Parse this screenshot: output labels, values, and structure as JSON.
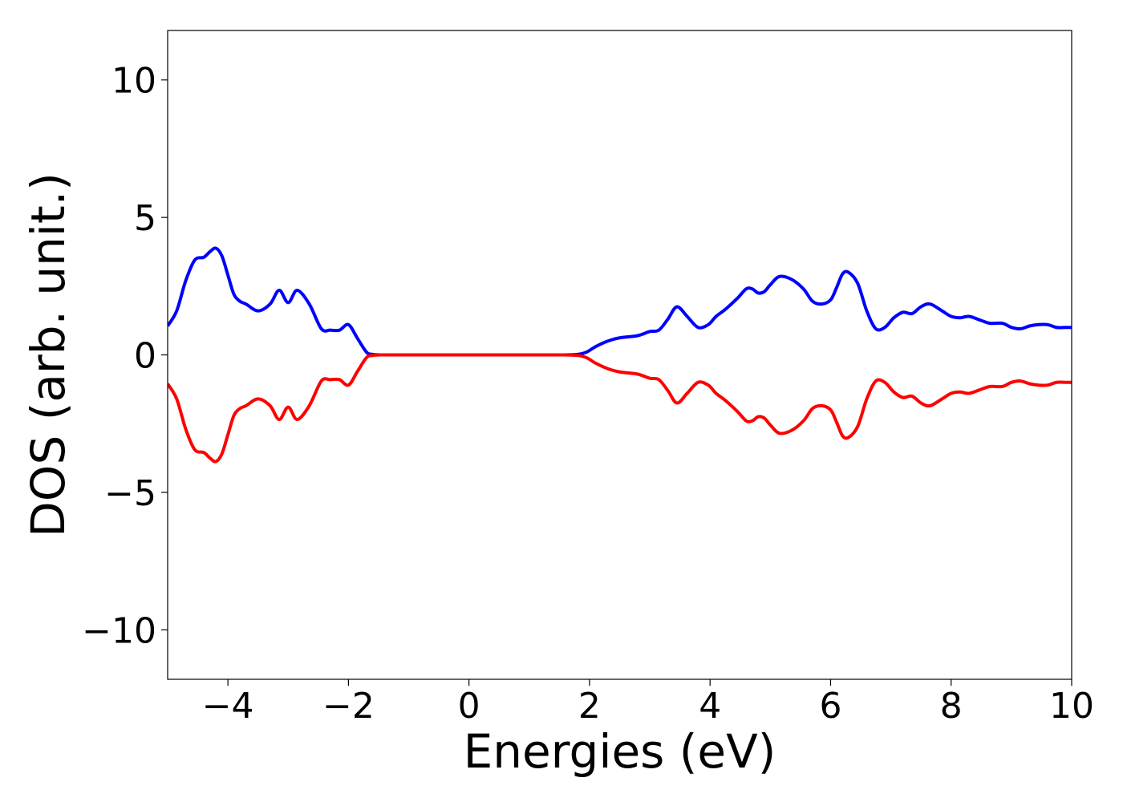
{
  "chart_data": {
    "type": "line",
    "xlabel": "Energies (eV)",
    "ylabel": "DOS (arb. unit.)",
    "xlim": [
      -5,
      10
    ],
    "ylim": [
      -11.8,
      11.8
    ],
    "xticks": [
      -4,
      -2,
      0,
      2,
      4,
      6,
      8,
      10
    ],
    "xtick_labels": [
      "−4",
      "−2",
      "0",
      "2",
      "4",
      "6",
      "8",
      "10"
    ],
    "yticks": [
      10,
      5,
      0,
      -5,
      -10
    ],
    "ytick_labels": [
      "10",
      "5",
      "0",
      "−5",
      "−10"
    ],
    "grid": false,
    "series": [
      {
        "color": "#0000ff",
        "x": [
          -5.0,
          -4.85,
          -4.7,
          -4.55,
          -4.4,
          -4.3,
          -4.2,
          -4.1,
          -4.0,
          -3.9,
          -3.8,
          -3.7,
          -3.5,
          -3.3,
          -3.15,
          -3.0,
          -2.85,
          -2.65,
          -2.45,
          -2.3,
          -2.15,
          -2.0,
          -1.85,
          -1.7,
          -1.6,
          -1.45,
          -1.3,
          -1.2,
          -1.1,
          -1.0,
          -0.9,
          -0.8,
          -0.7,
          -0.6,
          -0.5,
          -0.3,
          0.0,
          0.5,
          1.0,
          1.5,
          1.8,
          1.95,
          2.1,
          2.3,
          2.5,
          2.8,
          3.0,
          3.15,
          3.3,
          3.45,
          3.62,
          3.8,
          3.97,
          4.1,
          4.25,
          4.45,
          4.6,
          4.7,
          4.8,
          4.9,
          5.0,
          5.15,
          5.35,
          5.55,
          5.7,
          5.85,
          6.0,
          6.1,
          6.2,
          6.3,
          6.45,
          6.6,
          6.75,
          6.9,
          7.05,
          7.2,
          7.35,
          7.5,
          7.65,
          7.85,
          8.0,
          8.15,
          8.3,
          8.5,
          8.65,
          8.85,
          9.0,
          9.15,
          9.3,
          9.45,
          9.6,
          9.75,
          9.9,
          10.0
        ],
        "y": [
          1.05,
          1.6,
          2.7,
          3.45,
          3.55,
          3.75,
          3.88,
          3.6,
          2.9,
          2.2,
          1.95,
          1.85,
          1.6,
          1.85,
          2.35,
          1.9,
          2.35,
          1.85,
          0.95,
          0.9,
          0.9,
          1.1,
          0.6,
          0.1,
          0.02,
          0.0,
          0.0,
          0.0,
          0.0,
          0.0,
          0.0,
          0.0,
          0.0,
          0.0,
          0.0,
          0.0,
          0.0,
          0.0,
          0.0,
          0.0,
          0.02,
          0.1,
          0.3,
          0.5,
          0.62,
          0.7,
          0.85,
          0.9,
          1.3,
          1.75,
          1.4,
          1.0,
          1.1,
          1.4,
          1.65,
          2.05,
          2.4,
          2.4,
          2.25,
          2.3,
          2.55,
          2.85,
          2.75,
          2.4,
          1.95,
          1.85,
          2.0,
          2.45,
          2.95,
          3.0,
          2.6,
          1.6,
          0.95,
          1.0,
          1.35,
          1.55,
          1.5,
          1.75,
          1.85,
          1.6,
          1.4,
          1.35,
          1.4,
          1.25,
          1.15,
          1.15,
          1.0,
          0.95,
          1.05,
          1.1,
          1.1,
          1.0,
          1.0,
          1.0
        ]
      },
      {
        "color": "#ff0000",
        "x": [
          -5.0,
          -4.85,
          -4.7,
          -4.55,
          -4.4,
          -4.3,
          -4.2,
          -4.1,
          -4.0,
          -3.9,
          -3.8,
          -3.7,
          -3.5,
          -3.3,
          -3.15,
          -3.0,
          -2.85,
          -2.65,
          -2.45,
          -2.3,
          -2.15,
          -2.0,
          -1.85,
          -1.7,
          -1.6,
          -1.45,
          -1.3,
          -1.2,
          -1.1,
          -1.0,
          -0.9,
          -0.8,
          -0.7,
          -0.6,
          -0.5,
          -0.3,
          0.0,
          0.5,
          1.0,
          1.5,
          1.8,
          1.95,
          2.1,
          2.3,
          2.5,
          2.8,
          3.0,
          3.15,
          3.3,
          3.45,
          3.62,
          3.8,
          3.97,
          4.1,
          4.25,
          4.45,
          4.6,
          4.7,
          4.8,
          4.9,
          5.0,
          5.15,
          5.35,
          5.55,
          5.7,
          5.85,
          6.0,
          6.1,
          6.2,
          6.3,
          6.45,
          6.6,
          6.75,
          6.9,
          7.05,
          7.2,
          7.35,
          7.5,
          7.65,
          7.85,
          8.0,
          8.15,
          8.3,
          8.5,
          8.65,
          8.85,
          9.0,
          9.15,
          9.3,
          9.45,
          9.6,
          9.75,
          9.9,
          10.0
        ],
        "y": [
          -1.05,
          -1.6,
          -2.7,
          -3.45,
          -3.55,
          -3.75,
          -3.88,
          -3.6,
          -2.9,
          -2.2,
          -1.95,
          -1.85,
          -1.6,
          -1.85,
          -2.35,
          -1.9,
          -2.35,
          -1.85,
          -0.95,
          -0.9,
          -0.9,
          -1.1,
          -0.6,
          -0.1,
          -0.02,
          0.0,
          0.0,
          0.0,
          0.0,
          0.0,
          0.0,
          0.0,
          0.0,
          0.0,
          0.0,
          0.0,
          0.0,
          0.0,
          0.0,
          0.0,
          -0.02,
          -0.1,
          -0.3,
          -0.5,
          -0.62,
          -0.7,
          -0.85,
          -0.9,
          -1.3,
          -1.75,
          -1.4,
          -1.0,
          -1.1,
          -1.4,
          -1.65,
          -2.05,
          -2.4,
          -2.4,
          -2.25,
          -2.3,
          -2.55,
          -2.85,
          -2.75,
          -2.4,
          -1.95,
          -1.85,
          -2.0,
          -2.45,
          -2.95,
          -3.0,
          -2.6,
          -1.6,
          -0.95,
          -1.0,
          -1.35,
          -1.55,
          -1.5,
          -1.75,
          -1.85,
          -1.6,
          -1.4,
          -1.35,
          -1.4,
          -1.25,
          -1.15,
          -1.15,
          -1.0,
          -0.95,
          -1.05,
          -1.1,
          -1.1,
          -1.0,
          -1.0,
          -1.0
        ]
      }
    ]
  }
}
